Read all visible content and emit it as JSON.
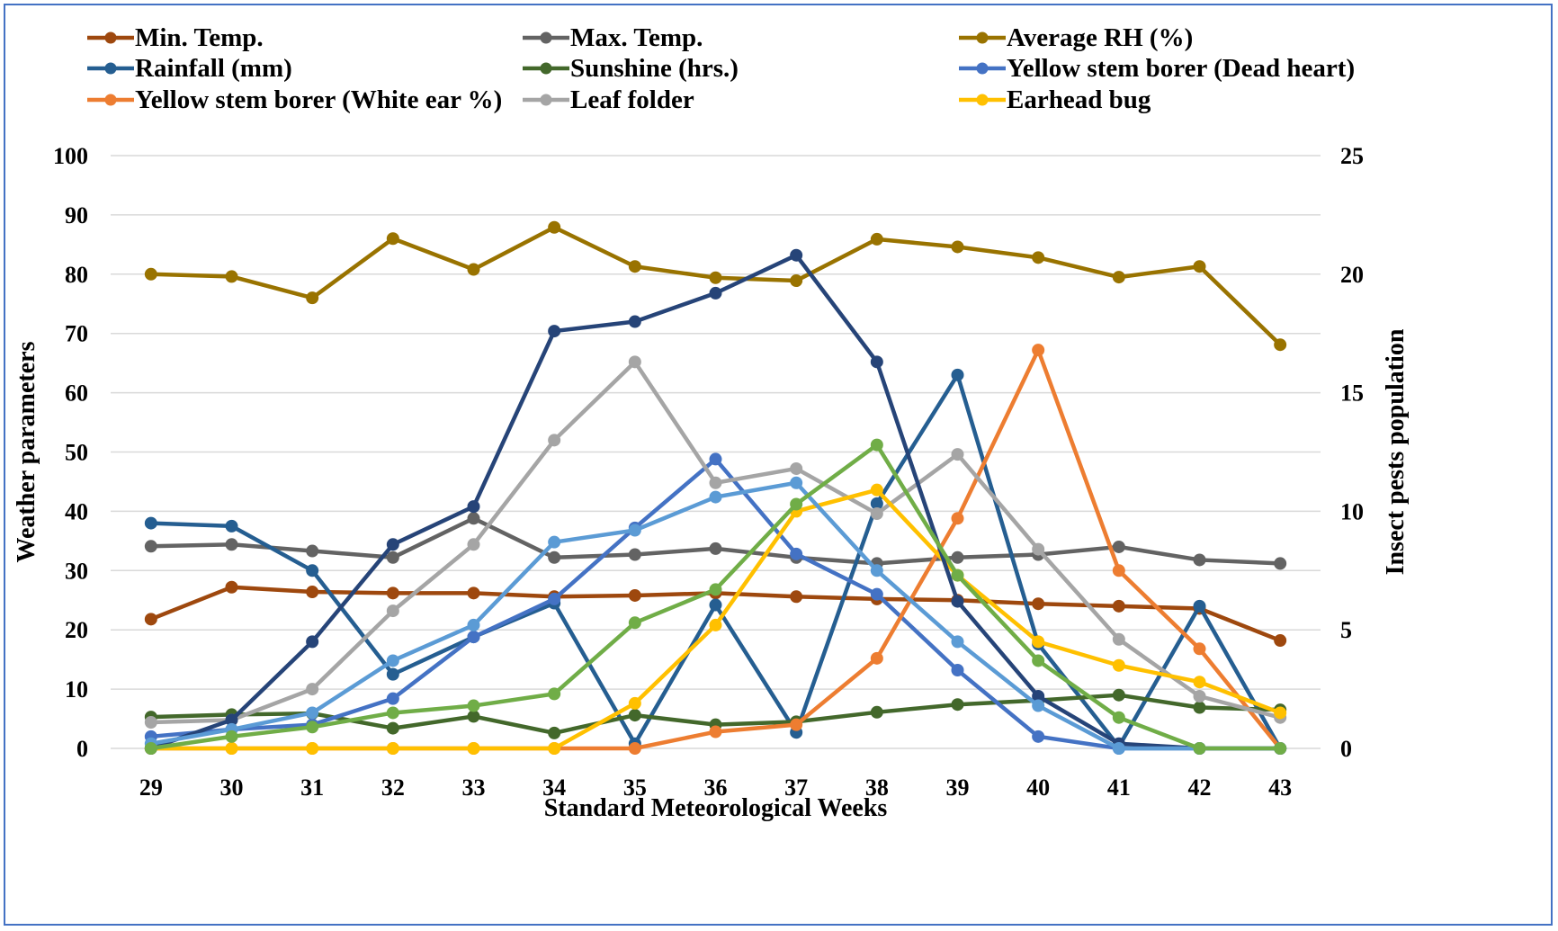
{
  "chart_data": {
    "type": "line",
    "title": "",
    "xlabel": "Standard Meteorological Weeks",
    "ylabel": "Weather parameters",
    "y2label": "Insect pests population",
    "categories": [
      "29",
      "30",
      "31",
      "32",
      "33",
      "34",
      "35",
      "36",
      "37",
      "38",
      "39",
      "40",
      "41",
      "42",
      "43"
    ],
    "ylim": [
      0,
      100
    ],
    "y2lim": [
      0,
      25
    ],
    "yticks": [
      "0",
      "10",
      "20",
      "30",
      "40",
      "50",
      "60",
      "70",
      "80",
      "90",
      "100"
    ],
    "y2ticks": [
      "0",
      "5",
      "10",
      "15",
      "20",
      "25"
    ],
    "grid": "horizontal",
    "legend_position": "top",
    "series": [
      {
        "name": "Min. Temp.",
        "axis": "left",
        "color": "#9e480e",
        "values": [
          21.8,
          27.2,
          26.4,
          26.2,
          26.2,
          25.6,
          25.8,
          26.2,
          25.6,
          25.2,
          25.0,
          24.4,
          24.0,
          23.6,
          18.2
        ]
      },
      {
        "name": "Max. Temp.",
        "axis": "left",
        "color": "#636363",
        "values": [
          34.1,
          34.4,
          33.3,
          32.2,
          38.8,
          32.2,
          32.7,
          33.7,
          32.2,
          31.2,
          32.2,
          32.7,
          34.0,
          31.8,
          31.2
        ]
      },
      {
        "name": "Average RH (%)",
        "axis": "left",
        "color": "#997300",
        "values": [
          80.0,
          79.6,
          76.0,
          86.0,
          80.8,
          87.9,
          81.3,
          79.4,
          78.9,
          85.9,
          84.6,
          82.8,
          79.5,
          81.3,
          68.1
        ]
      },
      {
        "name": "Rainfall (mm)",
        "axis": "left",
        "color": "#255e91",
        "values": [
          38.0,
          37.5,
          30.0,
          12.5,
          18.8,
          24.5,
          0.8,
          24.2,
          2.7,
          41.3,
          63.0,
          17.6,
          0.3,
          24.0,
          0.0
        ]
      },
      {
        "name": "Sunshine (hrs.)",
        "axis": "left",
        "color": "#43682b",
        "values": [
          5.3,
          5.7,
          5.9,
          3.4,
          5.4,
          2.6,
          5.6,
          4.0,
          4.5,
          6.1,
          7.4,
          8.1,
          9.0,
          6.9,
          6.5
        ]
      },
      {
        "name": "Yellow stem borer (Dead heart)",
        "axis": "right",
        "color": "#4472c4",
        "values": [
          0.5,
          0.8,
          1.0,
          2.1,
          4.7,
          6.3,
          9.3,
          12.2,
          8.2,
          6.5,
          3.3,
          0.5,
          0.0,
          0.0,
          0.0
        ]
      },
      {
        "name": "Yellow stem borer (White ear %)",
        "axis": "right",
        "color": "#ed7d31",
        "values": [
          0.0,
          0.0,
          0.0,
          0.0,
          0.0,
          0.0,
          0.0,
          0.7,
          1.0,
          3.8,
          9.7,
          16.8,
          7.5,
          4.2,
          0.0
        ]
      },
      {
        "name": "Leaf folder",
        "axis": "right",
        "color": "#a5a5a5",
        "values": [
          1.1,
          1.2,
          2.5,
          5.8,
          8.6,
          13.0,
          16.3,
          11.2,
          11.8,
          9.9,
          12.4,
          8.4,
          4.6,
          2.2,
          1.3
        ]
      },
      {
        "name": "Earhead bug",
        "axis": "right",
        "color": "#ffc000",
        "values": [
          0.0,
          0.0,
          0.0,
          0.0,
          0.0,
          0.0,
          1.9,
          5.2,
          10.0,
          10.9,
          7.3,
          4.5,
          3.5,
          2.8,
          1.5
        ]
      },
      {
        "name": "",
        "axis": "right",
        "color": "#264478",
        "values": [
          0.0,
          1.2,
          4.5,
          8.6,
          10.2,
          17.6,
          18.0,
          19.2,
          20.8,
          16.3,
          6.2,
          2.2,
          0.2,
          0.0,
          0.0
        ]
      },
      {
        "name": "",
        "axis": "right",
        "color": "#5b9bd5",
        "values": [
          0.2,
          0.8,
          1.5,
          3.7,
          5.2,
          8.7,
          9.2,
          10.6,
          11.2,
          7.5,
          4.5,
          1.8,
          0.0,
          0.0,
          0.0
        ]
      },
      {
        "name": "",
        "axis": "right",
        "color": "#70ad47",
        "values": [
          0.0,
          0.5,
          0.9,
          1.5,
          1.8,
          2.3,
          5.3,
          6.7,
          10.3,
          12.8,
          7.3,
          3.7,
          1.3,
          0.0,
          0.0
        ]
      }
    ]
  }
}
